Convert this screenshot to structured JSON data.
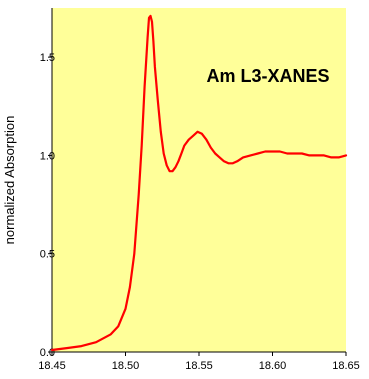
{
  "chart_data": {
    "type": "line",
    "title": "Am L3-XANES",
    "xlabel": "",
    "ylabel": "normalized Absorption",
    "xlim": [
      18.45,
      18.65
    ],
    "ylim": [
      0.0,
      1.75
    ],
    "x_ticks": [
      "18.45",
      "18.50",
      "18.55",
      "18.60",
      "18.65"
    ],
    "y_ticks": [
      "0.0",
      "0.5",
      "1.0",
      "1.5"
    ],
    "y_tick_values": [
      0.0,
      0.5,
      1.0,
      1.5
    ],
    "background_color": "#FFFF99",
    "series": [
      {
        "color": "#FF0000",
        "x": [
          18.45,
          18.46,
          18.47,
          18.48,
          18.49,
          18.495,
          18.5,
          18.503,
          18.506,
          18.509,
          18.511,
          18.513,
          18.515,
          18.516,
          18.517,
          18.518,
          18.519,
          18.52,
          18.522,
          18.524,
          18.526,
          18.528,
          18.53,
          18.532,
          18.534,
          18.536,
          18.538,
          18.54,
          18.543,
          18.546,
          18.549,
          18.552,
          18.555,
          18.558,
          18.561,
          18.564,
          18.567,
          18.57,
          18.573,
          18.576,
          18.58,
          18.585,
          18.59,
          18.595,
          18.6,
          18.605,
          18.61,
          18.615,
          18.62,
          18.625,
          18.63,
          18.635,
          18.64,
          18.645,
          18.65
        ],
        "y": [
          0.01,
          0.02,
          0.03,
          0.05,
          0.09,
          0.13,
          0.22,
          0.33,
          0.5,
          0.8,
          1.05,
          1.35,
          1.6,
          1.7,
          1.71,
          1.68,
          1.58,
          1.45,
          1.28,
          1.12,
          1.01,
          0.95,
          0.92,
          0.92,
          0.94,
          0.97,
          1.01,
          1.05,
          1.08,
          1.1,
          1.12,
          1.11,
          1.08,
          1.04,
          1.01,
          0.99,
          0.97,
          0.96,
          0.96,
          0.97,
          0.99,
          1.0,
          1.01,
          1.02,
          1.02,
          1.02,
          1.01,
          1.01,
          1.01,
          1.0,
          1.0,
          1.0,
          0.99,
          0.99,
          1.0
        ]
      }
    ],
    "grid": false,
    "legend": "none"
  }
}
